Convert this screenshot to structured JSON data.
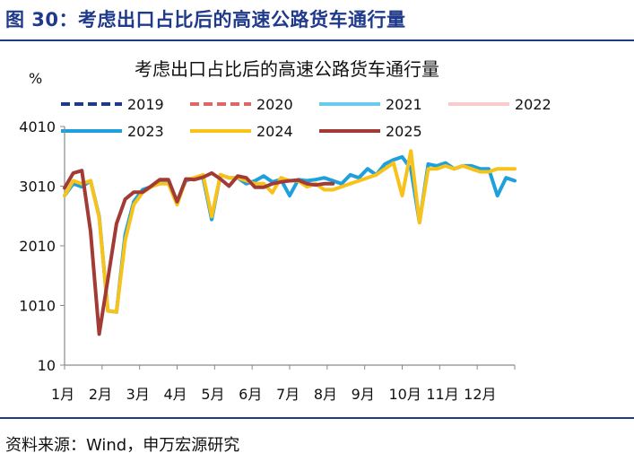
{
  "figure": {
    "title": "图 30：考虑出口占比后的高速公路货车通行量",
    "source": "资料来源：Wind，申万宏源研究"
  },
  "chart_data": {
    "type": "line",
    "title": "考虑出口占比后的高速公路货车通行量",
    "ylabel": "%",
    "xlabel": "",
    "ylim": [
      10,
      4010
    ],
    "yticks": [
      10,
      1010,
      2010,
      3010,
      4010
    ],
    "xtick_labels": [
      "1月",
      "2月",
      "3月",
      "4月",
      "5月",
      "6月",
      "7月",
      "8月",
      "9月",
      "10月",
      "11月",
      "12月"
    ],
    "x_range": [
      1,
      53
    ],
    "x_unit": "week",
    "legend_position": "top",
    "grid": false,
    "series": [
      {
        "name": "2019",
        "color": "#1f3a8a",
        "dash": true,
        "values": []
      },
      {
        "name": "2020",
        "color": "#e06666",
        "dash": true,
        "values": []
      },
      {
        "name": "2021",
        "color": "#66ccee",
        "dash": false,
        "values": []
      },
      {
        "name": "2022",
        "color": "#f8cccc",
        "dash": false,
        "values": []
      },
      {
        "name": "2023",
        "color": "#1ea0dc",
        "dash": false,
        "x": [
          1,
          2,
          3,
          4,
          5,
          6,
          7,
          8,
          9,
          10,
          11,
          12,
          13,
          14,
          15,
          16,
          17,
          18,
          19,
          20,
          21,
          22,
          23,
          24,
          25,
          26,
          27,
          28,
          29,
          30,
          31,
          32,
          33,
          34,
          35,
          36,
          37,
          38,
          39,
          40,
          41,
          42,
          43,
          44,
          45,
          46,
          47,
          48,
          49,
          50,
          51,
          52,
          53
        ],
        "values": [
          2850,
          3050,
          3000,
          3100,
          2500,
          920,
          900,
          2200,
          2750,
          2950,
          3000,
          3100,
          3080,
          2750,
          3100,
          3150,
          3150,
          2450,
          3200,
          3150,
          3150,
          3050,
          3100,
          3180,
          3080,
          3120,
          2850,
          3120,
          3100,
          3120,
          3150,
          3100,
          3050,
          3200,
          3150,
          3300,
          3200,
          3380,
          3450,
          3500,
          3300,
          2400,
          3380,
          3350,
          3400,
          3300,
          3350,
          3350,
          3300,
          3300,
          2850,
          3150,
          3100
        ]
      },
      {
        "name": "2024",
        "color": "#f7c21a",
        "dash": false,
        "x": [
          1,
          2,
          3,
          4,
          5,
          6,
          7,
          8,
          9,
          10,
          11,
          12,
          13,
          14,
          15,
          16,
          17,
          18,
          19,
          20,
          21,
          22,
          23,
          24,
          25,
          26,
          27,
          28,
          29,
          30,
          31,
          32,
          33,
          34,
          35,
          36,
          37,
          38,
          39,
          40,
          41,
          42,
          43,
          44,
          45,
          46,
          47,
          48,
          49,
          50,
          51,
          52,
          53
        ],
        "values": [
          2850,
          3100,
          3050,
          3100,
          2480,
          920,
          900,
          2100,
          2700,
          2900,
          3000,
          3050,
          3050,
          2700,
          3120,
          3150,
          3200,
          2500,
          3200,
          3150,
          3150,
          3100,
          3050,
          3050,
          2900,
          3150,
          3100,
          3100,
          3000,
          3050,
          2950,
          2950,
          3000,
          3050,
          3100,
          3150,
          3200,
          3300,
          3400,
          2850,
          3600,
          2400,
          3300,
          3300,
          3350,
          3300,
          3350,
          3300,
          3250,
          3250,
          3300,
          3300,
          3300
        ]
      },
      {
        "name": "2025",
        "color": "#a23b36",
        "dash": false,
        "x": [
          1,
          2,
          3,
          4,
          5,
          6,
          7,
          8,
          9,
          10,
          11,
          12,
          13,
          14,
          15,
          16,
          17,
          18,
          19,
          20,
          21,
          22,
          23,
          24,
          25,
          26,
          27,
          28,
          29,
          30,
          31,
          32
        ],
        "values": [
          2980,
          3230,
          3270,
          2250,
          530,
          1450,
          2380,
          2790,
          2910,
          2910,
          3010,
          3120,
          3120,
          2750,
          3130,
          3120,
          3160,
          3230,
          3130,
          3010,
          3180,
          3150,
          2990,
          2990,
          3050,
          3080,
          3100,
          3110,
          3050,
          3030,
          3050,
          3050
        ]
      }
    ]
  }
}
